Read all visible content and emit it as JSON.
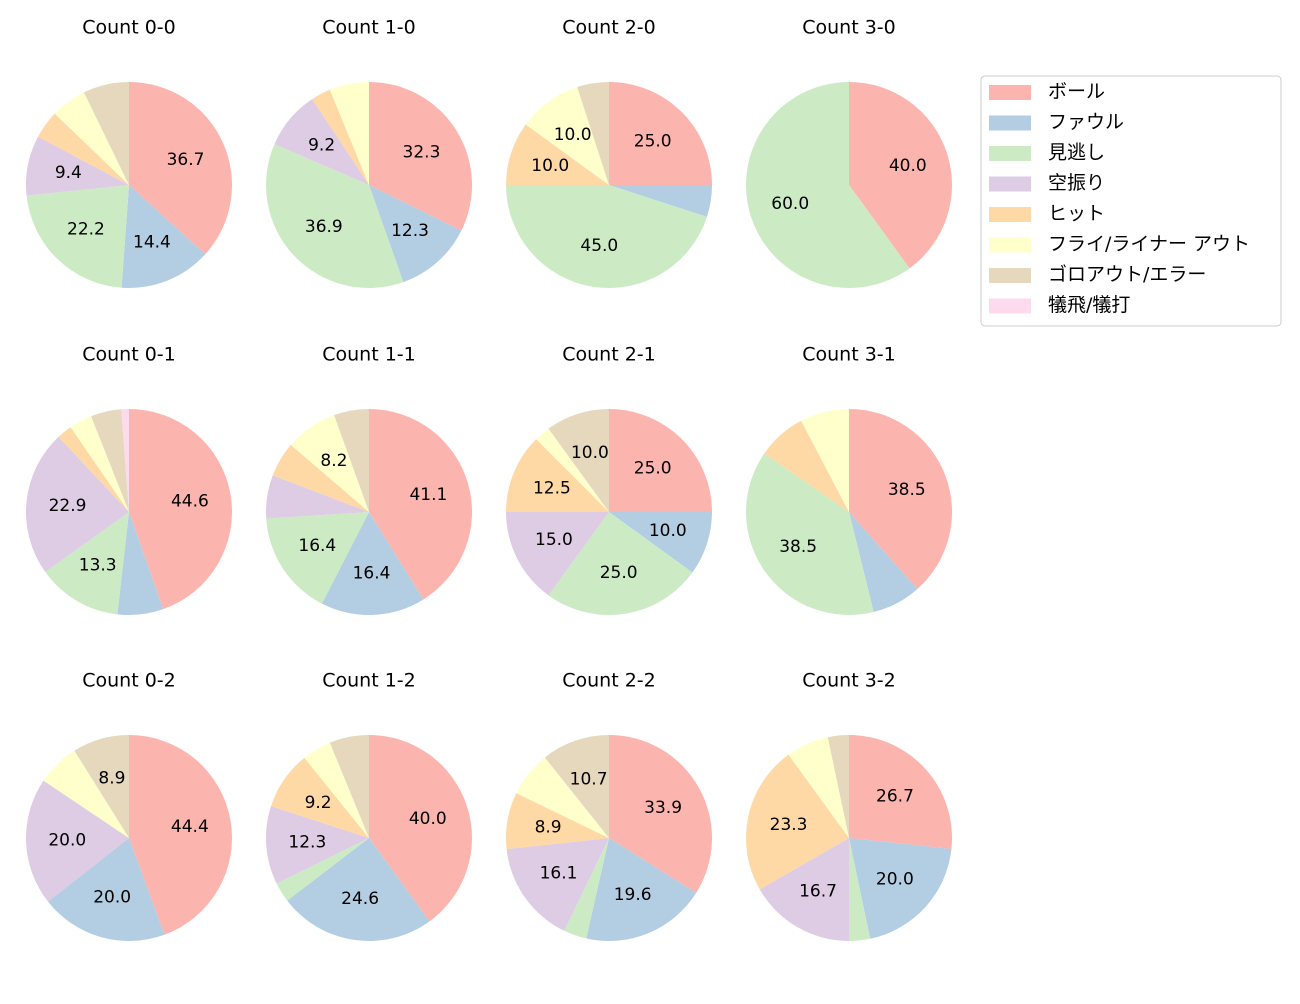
{
  "chart_data": [
    {
      "type": "pie",
      "title": "Count 0-0",
      "categories": [
        "ボール",
        "ファウル",
        "見逃し",
        "空振り",
        "ヒット",
        "フライ/ライナー アウト",
        "ゴロアウト/エラー",
        "犠飛/犠打"
      ],
      "colors": [
        "#fbb4ae",
        "#b3cde3",
        "#ccebc5",
        "#decbe4",
        "#fed9a6",
        "#ffffcc",
        "#e5d8bd",
        "#fddaec"
      ],
      "values": [
        36.7,
        14.4,
        22.2,
        9.4,
        4.4,
        5.6,
        7.2,
        0
      ],
      "value_labels": [
        "36.7",
        "14.4",
        "22.2",
        "9.4",
        null,
        null,
        null,
        null
      ]
    },
    {
      "type": "pie",
      "title": "Count 1-0",
      "categories": [
        "ボール",
        "ファウル",
        "見逃し",
        "空振り",
        "ヒット",
        "フライ/ライナー アウト",
        "ゴロアウト/エラー",
        "犠飛/犠打"
      ],
      "colors": [
        "#fbb4ae",
        "#b3cde3",
        "#ccebc5",
        "#decbe4",
        "#fed9a6",
        "#ffffcc",
        "#e5d8bd",
        "#fddaec"
      ],
      "values": [
        32.3,
        12.3,
        36.9,
        9.2,
        3.1,
        6.2,
        0,
        0
      ],
      "value_labels": [
        "32.3",
        "12.3",
        "36.9",
        "9.2",
        null,
        null,
        null,
        null
      ]
    },
    {
      "type": "pie",
      "title": "Count 2-0",
      "categories": [
        "ボール",
        "ファウル",
        "見逃し",
        "空振り",
        "ヒット",
        "フライ/ライナー アウト",
        "ゴロアウト/エラー",
        "犠飛/犠打"
      ],
      "colors": [
        "#fbb4ae",
        "#b3cde3",
        "#ccebc5",
        "#decbe4",
        "#fed9a6",
        "#ffffcc",
        "#e5d8bd",
        "#fddaec"
      ],
      "values": [
        25,
        5,
        45,
        0,
        10,
        10,
        5,
        0
      ],
      "value_labels": [
        "25.0",
        null,
        "45.0",
        null,
        "10.0",
        "10.0",
        null,
        null
      ]
    },
    {
      "type": "pie",
      "title": "Count 3-0",
      "categories": [
        "ボール",
        "ファウル",
        "見逃し",
        "空振り",
        "ヒット",
        "フライ/ライナー アウト",
        "ゴロアウト/エラー",
        "犠飛/犠打"
      ],
      "colors": [
        "#fbb4ae",
        "#b3cde3",
        "#ccebc5",
        "#decbe4",
        "#fed9a6",
        "#ffffcc",
        "#e5d8bd",
        "#fddaec"
      ],
      "values": [
        40,
        0,
        60,
        0,
        0,
        0,
        0,
        0
      ],
      "value_labels": [
        "40.0",
        null,
        "60.0",
        null,
        null,
        null,
        null,
        null
      ]
    },
    {
      "type": "pie",
      "title": "Count 0-1",
      "categories": [
        "ボール",
        "ファウル",
        "見逃し",
        "空振り",
        "ヒット",
        "フライ/ライナー アウト",
        "ゴロアウト/エラー",
        "犠飛/犠打"
      ],
      "colors": [
        "#fbb4ae",
        "#b3cde3",
        "#ccebc5",
        "#decbe4",
        "#fed9a6",
        "#ffffcc",
        "#e5d8bd",
        "#fddaec"
      ],
      "values": [
        44.6,
        7.2,
        13.3,
        22.9,
        2.4,
        3.6,
        4.8,
        1.2
      ],
      "value_labels": [
        "44.6",
        null,
        "13.3",
        "22.9",
        null,
        null,
        null,
        null
      ]
    },
    {
      "type": "pie",
      "title": "Count 1-1",
      "categories": [
        "ボール",
        "ファウル",
        "見逃し",
        "空振り",
        "ヒット",
        "フライ/ライナー アウト",
        "ゴロアウト/エラー",
        "犠飛/犠打"
      ],
      "colors": [
        "#fbb4ae",
        "#b3cde3",
        "#ccebc5",
        "#decbe4",
        "#fed9a6",
        "#ffffcc",
        "#e5d8bd",
        "#fddaec"
      ],
      "values": [
        41.1,
        16.4,
        16.4,
        6.8,
        5.5,
        8.2,
        5.5,
        0
      ],
      "value_labels": [
        "41.1",
        "16.4",
        "16.4",
        null,
        null,
        "8.2",
        null,
        null
      ]
    },
    {
      "type": "pie",
      "title": "Count 2-1",
      "categories": [
        "ボール",
        "ファウル",
        "見逃し",
        "空振り",
        "ヒット",
        "フライ/ライナー アウト",
        "ゴロアウト/エラー",
        "犠飛/犠打"
      ],
      "colors": [
        "#fbb4ae",
        "#b3cde3",
        "#ccebc5",
        "#decbe4",
        "#fed9a6",
        "#ffffcc",
        "#e5d8bd",
        "#fddaec"
      ],
      "values": [
        25,
        10,
        25,
        15,
        12.5,
        2.5,
        10,
        0
      ],
      "value_labels": [
        "25.0",
        "10.0",
        "25.0",
        "15.0",
        "12.5",
        null,
        "10.0",
        null
      ]
    },
    {
      "type": "pie",
      "title": "Count 3-1",
      "categories": [
        "ボール",
        "ファウル",
        "見逃し",
        "空振り",
        "ヒット",
        "フライ/ライナー アウト",
        "ゴロアウト/エラー",
        "犠飛/犠打"
      ],
      "colors": [
        "#fbb4ae",
        "#b3cde3",
        "#ccebc5",
        "#decbe4",
        "#fed9a6",
        "#ffffcc",
        "#e5d8bd",
        "#fddaec"
      ],
      "values": [
        38.5,
        7.7,
        38.5,
        0,
        7.7,
        7.7,
        0,
        0
      ],
      "value_labels": [
        "38.5",
        null,
        "38.5",
        null,
        null,
        null,
        null,
        null
      ]
    },
    {
      "type": "pie",
      "title": "Count 0-2",
      "categories": [
        "ボール",
        "ファウル",
        "見逃し",
        "空振り",
        "ヒット",
        "フライ/ライナー アウト",
        "ゴロアウト/エラー",
        "犠飛/犠打"
      ],
      "colors": [
        "#fbb4ae",
        "#b3cde3",
        "#ccebc5",
        "#decbe4",
        "#fed9a6",
        "#ffffcc",
        "#e5d8bd",
        "#fddaec"
      ],
      "values": [
        44.4,
        20,
        0,
        20,
        0,
        6.7,
        8.9,
        0
      ],
      "value_labels": [
        "44.4",
        "20.0",
        null,
        "20.0",
        null,
        null,
        "8.9",
        null
      ]
    },
    {
      "type": "pie",
      "title": "Count 1-2",
      "categories": [
        "ボール",
        "ファウル",
        "見逃し",
        "空振り",
        "ヒット",
        "フライ/ライナー アウト",
        "ゴロアウト/エラー",
        "犠飛/犠打"
      ],
      "colors": [
        "#fbb4ae",
        "#b3cde3",
        "#ccebc5",
        "#decbe4",
        "#fed9a6",
        "#ffffcc",
        "#e5d8bd",
        "#fddaec"
      ],
      "values": [
        40,
        24.6,
        3.1,
        12.3,
        9.2,
        4.6,
        6.2,
        0
      ],
      "value_labels": [
        "40.0",
        "24.6",
        null,
        "12.3",
        "9.2",
        null,
        null,
        null
      ]
    },
    {
      "type": "pie",
      "title": "Count 2-2",
      "categories": [
        "ボール",
        "ファウル",
        "見逃し",
        "空振り",
        "ヒット",
        "フライ/ライナー アウト",
        "ゴロアウト/エラー",
        "犠飛/犠打"
      ],
      "colors": [
        "#fbb4ae",
        "#b3cde3",
        "#ccebc5",
        "#decbe4",
        "#fed9a6",
        "#ffffcc",
        "#e5d8bd",
        "#fddaec"
      ],
      "values": [
        33.9,
        19.6,
        3.6,
        16.1,
        8.9,
        7.1,
        10.7,
        0
      ],
      "value_labels": [
        "33.9",
        "19.6",
        null,
        "16.1",
        "8.9",
        null,
        "10.7",
        null
      ]
    },
    {
      "type": "pie",
      "title": "Count 3-2",
      "categories": [
        "ボール",
        "ファウル",
        "見逃し",
        "空振り",
        "ヒット",
        "フライ/ライナー アウト",
        "ゴロアウト/エラー",
        "犠飛/犠打"
      ],
      "colors": [
        "#fbb4ae",
        "#b3cde3",
        "#ccebc5",
        "#decbe4",
        "#fed9a6",
        "#ffffcc",
        "#e5d8bd",
        "#fddaec"
      ],
      "values": [
        26.7,
        20,
        3.3,
        16.7,
        23.3,
        6.7,
        3.3,
        0
      ],
      "value_labels": [
        "26.7",
        "20.0",
        null,
        "16.7",
        "23.3",
        null,
        null,
        null
      ]
    }
  ]
}
